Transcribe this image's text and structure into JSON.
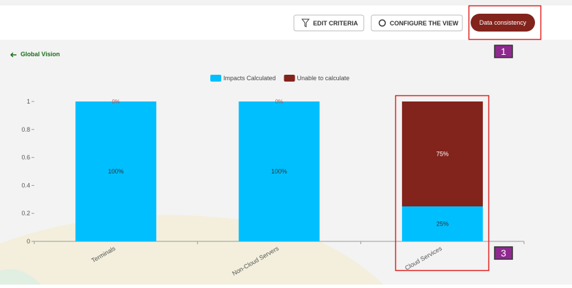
{
  "toolbar": {
    "edit_criteria": "EDIT CRITERIA",
    "configure_view": "CONFIGURE THE VIEW",
    "data_consistency": "Data consistency"
  },
  "back_link": "Global Vision",
  "callouts": [
    "1",
    "3"
  ],
  "chart_data": {
    "type": "stacked-bar",
    "categories": [
      "Terminals",
      "Non-Cloud Servers",
      "Cloud Services"
    ],
    "series": [
      {
        "name": "Impacts Calculated",
        "color": "#00bfff",
        "values": [
          1,
          1,
          0.25
        ],
        "value_labels": [
          "100%",
          "100%",
          "25%"
        ]
      },
      {
        "name": "Unable to calculate",
        "color": "#82231c",
        "values": [
          0,
          0,
          0.75
        ],
        "value_labels": [
          "0%",
          "0%",
          "75%"
        ]
      }
    ],
    "ylim": [
      0,
      1
    ],
    "yticks": [
      0,
      0.2,
      0.4,
      0.6,
      0.8,
      1
    ],
    "legend": "top"
  }
}
